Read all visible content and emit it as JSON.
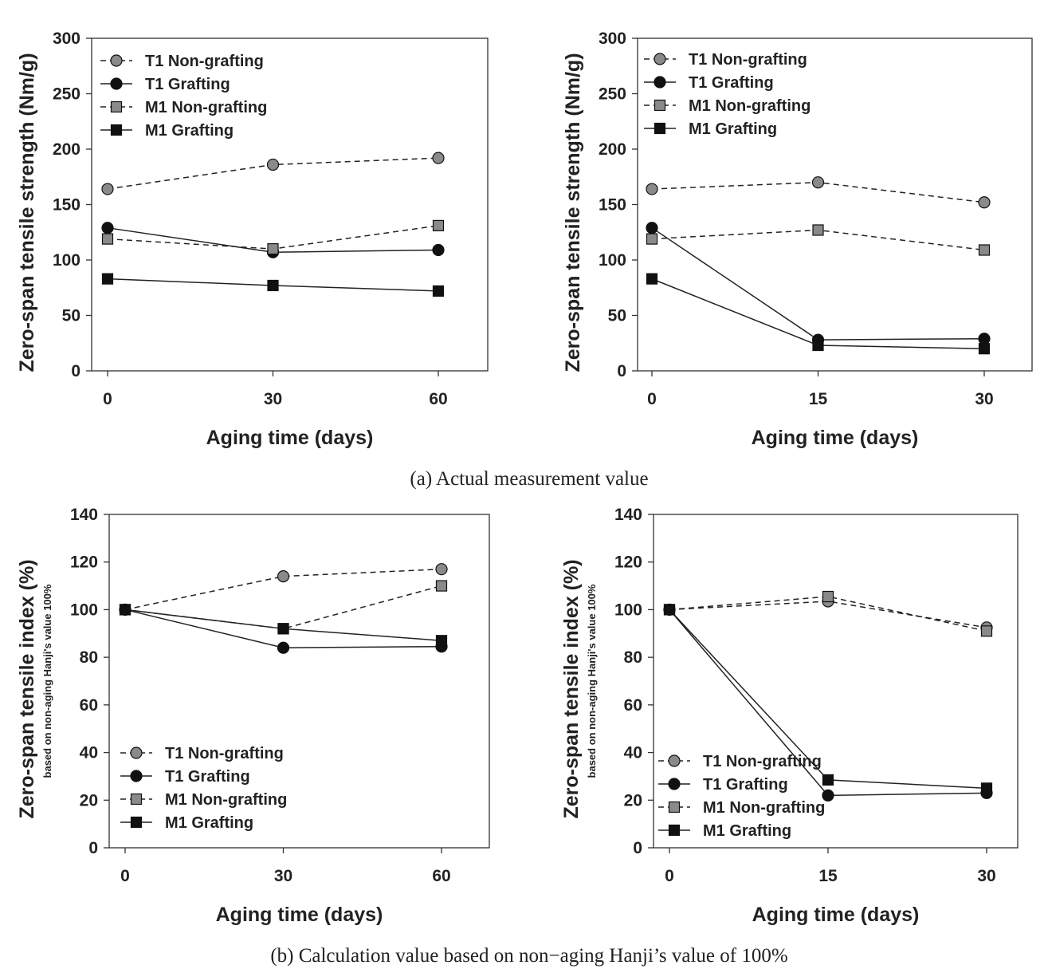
{
  "captions": [
    "(a) Actual measurement value",
    "(b) Calculation value based on non−aging Hanji’s value of 100%"
  ],
  "colors": {
    "non_grafting_marker": "#8a8a8a",
    "grafting_marker": "#111111",
    "line": "#222222"
  },
  "chart_data": [
    {
      "type": "line",
      "title": "",
      "xlabel": "Aging time (days)",
      "ylabel": "Zero-span tensile strength (Nm/g)",
      "ylabel_sub": "",
      "x": [
        0,
        30,
        60
      ],
      "xticks": [
        "0",
        "30",
        "60"
      ],
      "yticks": [
        "0",
        "50",
        "100",
        "150",
        "200",
        "250",
        "300"
      ],
      "xlim": [
        0,
        60
      ],
      "ylim": [
        0,
        300
      ],
      "legend": "top-left",
      "series": [
        {
          "name": "T1 Non-grafting",
          "values": [
            164,
            186,
            192
          ]
        },
        {
          "name": "T1 Grafting",
          "values": [
            129,
            107,
            109
          ]
        },
        {
          "name": "M1 Non-grafting",
          "values": [
            119,
            110,
            131
          ]
        },
        {
          "name": "M1 Grafting",
          "values": [
            83,
            77,
            72
          ]
        }
      ]
    },
    {
      "type": "line",
      "title": "",
      "xlabel": "Aging time (days)",
      "ylabel": "Zero-span tensile strength (Nm/g)",
      "ylabel_sub": "",
      "x": [
        0,
        15,
        30
      ],
      "xticks": [
        "0",
        "15",
        "30"
      ],
      "yticks": [
        "0",
        "50",
        "100",
        "150",
        "200",
        "250",
        "300"
      ],
      "xlim": [
        0,
        30
      ],
      "ylim": [
        0,
        300
      ],
      "legend": "top-left",
      "series": [
        {
          "name": "T1 Non-grafting",
          "values": [
            164,
            170,
            152
          ]
        },
        {
          "name": "T1 Grafting",
          "values": [
            129,
            28,
            29
          ]
        },
        {
          "name": "M1 Non-grafting",
          "values": [
            119,
            127,
            109
          ]
        },
        {
          "name": "M1 Grafting",
          "values": [
            83,
            23,
            20
          ]
        }
      ]
    },
    {
      "type": "line",
      "title": "",
      "xlabel": "Aging time (days)",
      "ylabel": "Zero-span tensile index (%)",
      "ylabel_sub": "based on non-aging Hanji's value 100%",
      "x": [
        0,
        30,
        60
      ],
      "xticks": [
        "0",
        "30",
        "60"
      ],
      "yticks": [
        "0",
        "20",
        "40",
        "60",
        "80",
        "100",
        "120",
        "140"
      ],
      "xlim": [
        0,
        60
      ],
      "ylim": [
        0,
        140
      ],
      "legend": "bottom-left",
      "series": [
        {
          "name": "T1 Non-grafting",
          "values": [
            100,
            114,
            117
          ]
        },
        {
          "name": "T1 Grafting",
          "values": [
            100,
            84,
            84.5
          ]
        },
        {
          "name": "M1 Non-grafting",
          "values": [
            100,
            92,
            110
          ]
        },
        {
          "name": "M1 Grafting",
          "values": [
            100,
            92,
            87
          ]
        }
      ]
    },
    {
      "type": "line",
      "title": "",
      "xlabel": "Aging time (days)",
      "ylabel": "Zero-span tensile index (%)",
      "ylabel_sub": "based on non-aging Hanji's value 100%",
      "x": [
        0,
        15,
        30
      ],
      "xticks": [
        "0",
        "15",
        "30"
      ],
      "yticks": [
        "0",
        "20",
        "40",
        "60",
        "80",
        "100",
        "120",
        "140"
      ],
      "xlim": [
        0,
        30
      ],
      "ylim": [
        0,
        140
      ],
      "legend": "bottom-left",
      "series": [
        {
          "name": "T1 Non-grafting",
          "values": [
            100,
            103.5,
            92.5
          ]
        },
        {
          "name": "T1 Grafting",
          "values": [
            100,
            22,
            23
          ]
        },
        {
          "name": "M1 Non-grafting",
          "values": [
            100,
            105.5,
            91
          ]
        },
        {
          "name": "M1 Grafting",
          "values": [
            100,
            28.5,
            25
          ]
        }
      ]
    }
  ]
}
